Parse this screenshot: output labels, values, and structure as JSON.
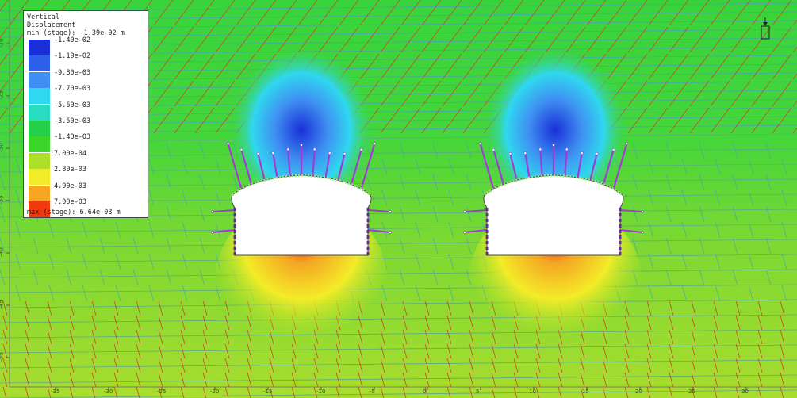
{
  "legend": {
    "title_line1": "Vertical",
    "title_line2": "Displacement",
    "min_text": "min (stage): -1.39e-02 m",
    "max_text": "max (stage): 6.64e-03 m",
    "items": [
      {
        "label": "-1.40e-02",
        "color": "#1a2fd6"
      },
      {
        "label": "-1.19e-02",
        "color": "#2d5fe8"
      },
      {
        "label": "-9.80e-03",
        "color": "#3f8ff2"
      },
      {
        "label": "-7.70e-03",
        "color": "#30d7f0"
      },
      {
        "label": "-5.60e-03",
        "color": "#28dcbf"
      },
      {
        "label": "-3.50e-03",
        "color": "#26cf4a"
      },
      {
        "label": "-1.40e-03",
        "color": "#3bd52a"
      },
      {
        "label": "7.00e-04",
        "color": "#aee02a"
      },
      {
        "label": "2.80e-03",
        "color": "#f3ec28"
      },
      {
        "label": "4.90e-03",
        "color": "#f5a623"
      },
      {
        "label": "7.00e-03",
        "color": "#f0390e"
      }
    ]
  },
  "axes": {
    "y_ticks": [
      "-20",
      "-25",
      "-30",
      "-35",
      "-40",
      "-45",
      "-50"
    ],
    "x_ticks": [
      "-35",
      "-30",
      "-25",
      "-20",
      "-15",
      "-10",
      "-5",
      "0",
      "5",
      "10",
      "15",
      "20",
      "25",
      "30"
    ]
  },
  "colors": {
    "joint_red": "#d2422e",
    "joint_teal": "#4aa6a6",
    "bolt_purple": "#a23ad6",
    "liner_green": "#9be07a",
    "excavation": "#ffffff"
  },
  "icons": {
    "view_marker": "stage-pin-icon"
  }
}
